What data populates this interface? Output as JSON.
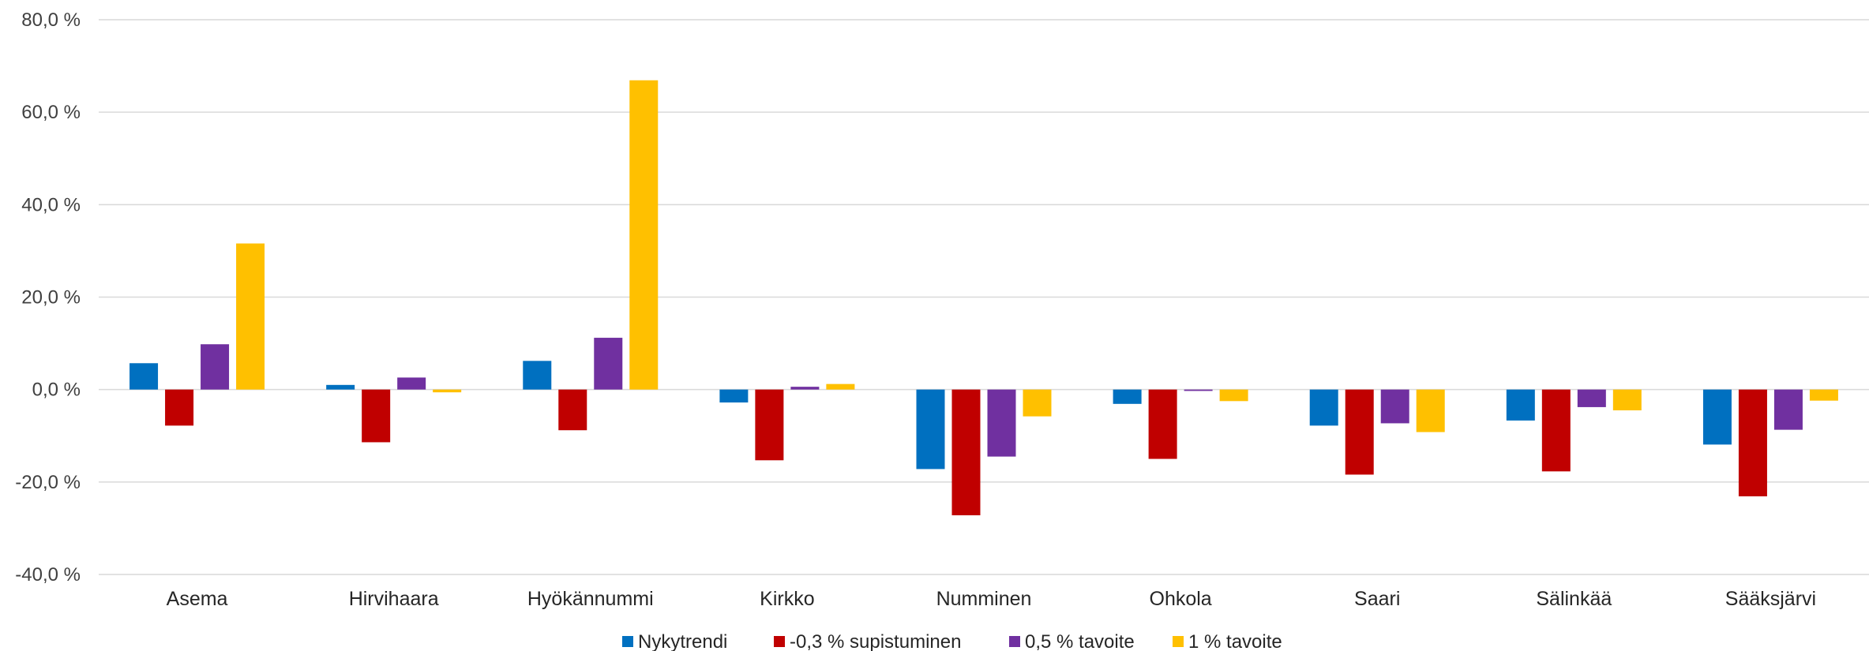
{
  "chart_data": {
    "type": "bar",
    "title": "",
    "xlabel": "",
    "ylabel": "",
    "ylim": [
      -40,
      80
    ],
    "yticks": [
      80,
      60,
      40,
      20,
      0,
      -20,
      -40
    ],
    "ytick_labels": [
      "80,0 %",
      "60,0 %",
      "40,0 %",
      "20,0 %",
      "0,0 %",
      "-20,0 %",
      "-40,0 %"
    ],
    "grid": true,
    "legend_position": "bottom",
    "categories": [
      "Asema",
      "Hirvihaara",
      "Hyökännummi",
      "Kirkko",
      "Numminen",
      "Ohkola",
      "Saari",
      "Sälinkää",
      "Sääksjärvi"
    ],
    "series": [
      {
        "name": "Nykytrendi",
        "color": "#0070C0",
        "values": [
          5.7,
          1.0,
          6.2,
          -2.8,
          -17.2,
          -3.1,
          -7.8,
          -6.7,
          -11.9
        ]
      },
      {
        "name": "-0,3 % supistuminen",
        "color": "#C00000",
        "values": [
          -7.8,
          -11.4,
          -8.8,
          -15.3,
          -27.2,
          -15.0,
          -18.4,
          -17.7,
          -23.1
        ]
      },
      {
        "name": "0,5 % tavoite",
        "color": "#7030A0",
        "values": [
          9.8,
          2.6,
          11.2,
          0.6,
          -14.5,
          -0.3,
          -7.3,
          -3.8,
          -8.7
        ]
      },
      {
        "name": "1 % tavoite",
        "color": "#FFC000",
        "values": [
          31.6,
          -0.6,
          66.9,
          1.2,
          -5.8,
          -2.5,
          -9.2,
          -4.5,
          -2.4
        ]
      }
    ]
  }
}
